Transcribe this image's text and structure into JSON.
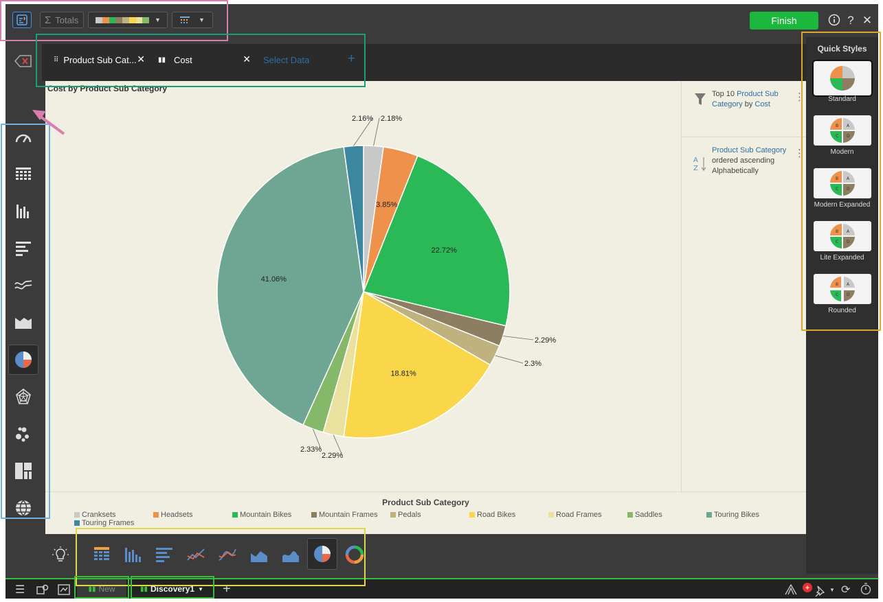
{
  "toolbar": {
    "totals_label": "Totals",
    "finish_label": "Finish"
  },
  "data_pills": [
    {
      "label": "Product Sub Cat...",
      "color": "#2e6da4"
    },
    {
      "label": "Cost",
      "color": "#d9773b"
    },
    {
      "label": "Select Data",
      "color": "#ffffff"
    }
  ],
  "chart_data": {
    "type": "pie",
    "title": "Cost by Product Sub Category",
    "legend_title": "Product Sub Category",
    "legend_position": "bottom",
    "categories": [
      "Cranksets",
      "Headsets",
      "Mountain Bikes",
      "Mountain Frames",
      "Pedals",
      "Road Bikes",
      "Road Frames",
      "Saddles",
      "Touring Bikes",
      "Touring Frames"
    ],
    "values": [
      2.18,
      3.85,
      22.72,
      2.29,
      2.3,
      18.81,
      2.29,
      2.33,
      41.06,
      2.16
    ],
    "value_labels": [
      "2.18%",
      "3.85%",
      "22.72%",
      "2.29%",
      "2.3%",
      "18.81%",
      "2.29%",
      "2.33%",
      "41.06%",
      "2.16%"
    ],
    "colors": [
      "#c8c8c8",
      "#ee914a",
      "#2bb857",
      "#8e7e61",
      "#bfb27e",
      "#fad64a",
      "#ebe19e",
      "#86b86a",
      "#6ea593",
      "#3b87a0"
    ]
  },
  "side_panel": {
    "filter_parts": [
      "Top 10 ",
      "Product Sub Category",
      " by ",
      "Cost"
    ],
    "sort_parts": [
      "Product Sub Category",
      " ordered ascending Alphabetically"
    ]
  },
  "quick_styles": {
    "title": "Quick Styles",
    "items": [
      "Standard",
      "Modern",
      "Modern Expanded",
      "Lite Expanded",
      "Rounded"
    ],
    "selected": "Standard"
  },
  "tabs": [
    {
      "label": "New"
    },
    {
      "label": "Discovery1"
    }
  ]
}
